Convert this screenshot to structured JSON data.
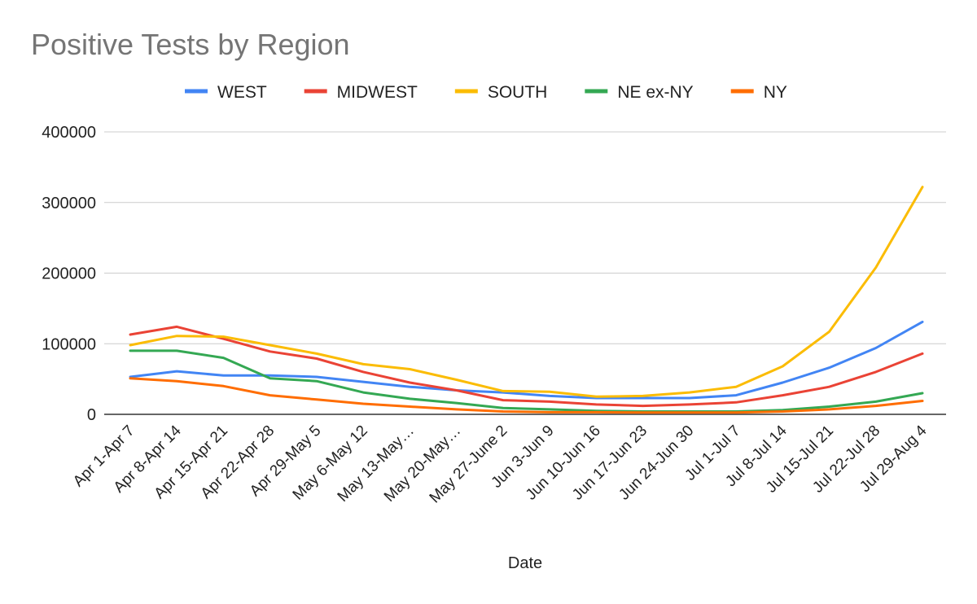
{
  "chart_data": {
    "type": "line",
    "title": "Positive Tests by Region",
    "xlabel": "Date",
    "ylabel": "",
    "ylim": [
      0,
      400000
    ],
    "yticks": [
      "0",
      "100000",
      "200000",
      "300000",
      "400000"
    ],
    "grid": true,
    "legend_position": "top",
    "categories": [
      "Apr 1-Apr 7",
      "Apr 8-Apr 14",
      "Apr 15-Apr 21",
      "Apr 22-Apr 28",
      "Apr 29-May 5",
      "May 6-May 12",
      "May 13-May…",
      "May 20-May…",
      "May 27-June 2",
      "Jun 3-Jun 9",
      "Jun 10-Jun 16",
      "Jun 17-Jun 23",
      "Jun 24-Jun 30",
      "Jul 1-Jul 7",
      "Jul 8-Jul 14",
      "Jul 15-Jul 21",
      "Jul 22-Jul 28",
      "Jul 29-Aug 4"
    ],
    "series": [
      {
        "name": "WEST",
        "color": "#4285f4",
        "values": [
          53000,
          61000,
          55000,
          55000,
          53000,
          46000,
          39000,
          34000,
          31000,
          26000,
          23000,
          23000,
          23000,
          27000,
          45000,
          66000,
          94000,
          131000
        ]
      },
      {
        "name": "MIDWEST",
        "color": "#ea4335",
        "values": [
          113000,
          124000,
          107000,
          89000,
          79000,
          60000,
          45000,
          34000,
          20000,
          18000,
          14000,
          12000,
          14000,
          17000,
          27000,
          39000,
          60000,
          86000
        ]
      },
      {
        "name": "SOUTH",
        "color": "#fbbc04",
        "values": [
          98000,
          111000,
          110000,
          98000,
          86000,
          71000,
          64000,
          49000,
          33000,
          32000,
          25000,
          26000,
          31000,
          39000,
          68000,
          117000,
          208000,
          322000
        ]
      },
      {
        "name": "NE ex-NY",
        "color": "#34a853",
        "values": [
          90000,
          90000,
          80000,
          51000,
          47000,
          31000,
          22000,
          16000,
          9000,
          7000,
          5000,
          4000,
          4000,
          4000,
          6000,
          11000,
          18000,
          30000
        ]
      },
      {
        "name": "NY",
        "color": "#ff6d01",
        "values": [
          51000,
          47000,
          40000,
          27000,
          21000,
          15000,
          11000,
          7000,
          4000,
          3000,
          3000,
          2500,
          2500,
          2500,
          4000,
          7000,
          12000,
          19000
        ]
      }
    ]
  }
}
